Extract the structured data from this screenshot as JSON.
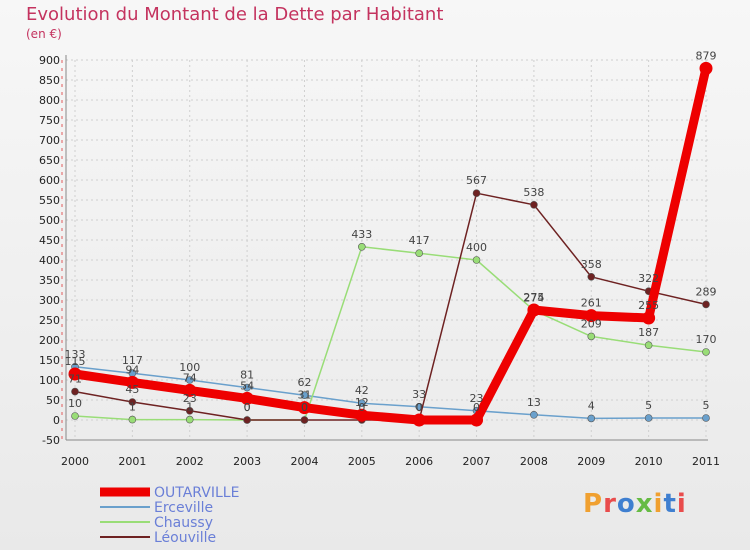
{
  "title": "Evolution du Montant de la Dette par Habitant",
  "subtitle": "(en €)",
  "logo_text": "Proxiti",
  "chart_data": {
    "type": "line",
    "title": "Evolution du Montant de la Dette par Habitant",
    "ylabel": "(en €)",
    "x": [
      "2000",
      "2001",
      "2002",
      "2003",
      "2004",
      "2005",
      "2006",
      "2007",
      "2008",
      "2009",
      "2010",
      "2011"
    ],
    "ylim": [
      -50,
      900
    ],
    "yticks": [
      -50,
      0,
      50,
      100,
      150,
      200,
      250,
      300,
      350,
      400,
      450,
      500,
      550,
      600,
      650,
      700,
      750,
      800,
      850,
      900
    ],
    "grid": true,
    "legend_position": "bottom-left",
    "series": [
      {
        "name": "OUTARVILLE",
        "color": "#ee0000",
        "values": [
          115,
          94,
          74,
          54,
          31,
          12,
          0,
          0,
          275,
          261,
          255,
          879
        ],
        "labels": [
          "115",
          "94",
          "74",
          "54",
          "31",
          "12",
          "0",
          "0",
          "275",
          "261",
          "255",
          "879"
        ]
      },
      {
        "name": "Erceville",
        "color": "#6aa0cc",
        "values": [
          133,
          117,
          100,
          81,
          62,
          42,
          33,
          23,
          13,
          4,
          5,
          5
        ],
        "labels": [
          "133",
          "117",
          "100",
          "81",
          "62",
          "42",
          "33",
          "23",
          "13",
          "4",
          "5",
          "5"
        ]
      },
      {
        "name": "Chaussy",
        "color": "#99dd77",
        "values": [
          10,
          1,
          1,
          0,
          0,
          433,
          417,
          400,
          274,
          209,
          187,
          170
        ],
        "labels": [
          "10",
          "1",
          "1",
          "0",
          "0",
          "433",
          "417",
          "400",
          "274",
          "209",
          "187",
          "170"
        ]
      },
      {
        "name": "Léouville",
        "color": "#6e2222",
        "values": [
          71,
          45,
          23,
          0,
          0,
          0,
          0,
          567,
          538,
          358,
          322,
          289
        ],
        "labels": [
          "71",
          "45",
          "23",
          "0",
          "0",
          "0",
          "0",
          "567",
          "538",
          "358",
          "322",
          "289"
        ]
      }
    ]
  }
}
